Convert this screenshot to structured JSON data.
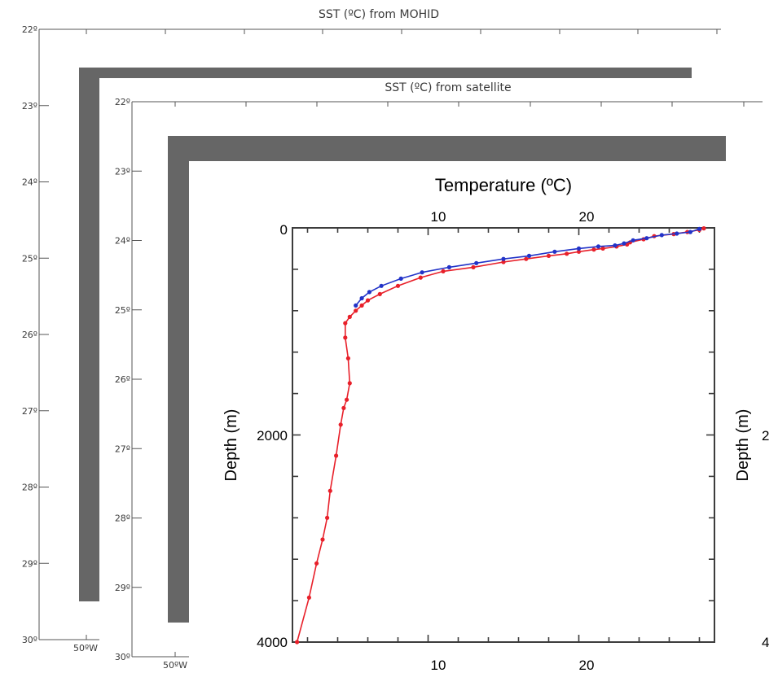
{
  "panels": [
    {
      "title": "SST (ºC) from MOHID",
      "lat_ticks": [
        "22º",
        "23º",
        "24º",
        "25º",
        "26º",
        "27º",
        "28º",
        "29º",
        "30º"
      ],
      "lon_ticks": [
        "50ºW"
      ]
    },
    {
      "title": "SST (ºC) from satellite",
      "lat_ticks": [
        "22º",
        "23º",
        "24º",
        "25º",
        "26º",
        "27º",
        "28º",
        "29º",
        "30º"
      ],
      "lon_ticks": [
        "50ºW"
      ]
    }
  ],
  "chart_data": {
    "type": "line",
    "title": "",
    "xlabel": "Temperature (ºC)",
    "ylabel": "Depth (m)",
    "x_ticks": [
      "10",
      "20"
    ],
    "y_ticks": [
      "0",
      "2000",
      "4000"
    ],
    "xlim": [
      1,
      29
    ],
    "ylim": [
      4000,
      0
    ],
    "right_axis_label": "Depth (m)",
    "right_partial_ticks": [
      "2",
      "4"
    ],
    "colors": {
      "series_1": "#e8202a",
      "series_2": "#2233c8"
    },
    "series": [
      {
        "x": [
          28.3,
          28.0,
          27.2,
          26.3,
          25.0,
          24.3,
          23.4,
          23.2,
          22.5,
          21.6,
          21.0,
          20.0,
          19.2,
          18.0,
          16.5,
          15.0,
          13.0,
          11.0,
          9.5,
          8.0,
          6.8,
          6.0,
          5.6,
          5.2,
          4.8,
          4.5,
          4.5,
          4.7,
          4.8,
          4.6,
          4.4,
          4.2,
          3.9,
          3.5,
          3.3,
          3.0,
          2.6,
          2.1,
          1.3
        ],
        "y": [
          5,
          20,
          40,
          60,
          80,
          110,
          140,
          160,
          180,
          200,
          210,
          230,
          250,
          270,
          300,
          330,
          380,
          420,
          480,
          560,
          640,
          700,
          750,
          800,
          860,
          920,
          1060,
          1260,
          1500,
          1660,
          1740,
          1900,
          2200,
          2540,
          2800,
          3010,
          3240,
          3570,
          4000
        ]
      },
      {
        "x": [
          28.0,
          27.4,
          26.5,
          25.5,
          24.5,
          23.6,
          23.0,
          22.4,
          21.3,
          20.0,
          18.4,
          16.7,
          15.0,
          13.2,
          11.4,
          9.6,
          8.2,
          6.9,
          6.1,
          5.6,
          5.2
        ],
        "y": [
          10,
          40,
          55,
          70,
          100,
          120,
          150,
          170,
          180,
          200,
          230,
          270,
          300,
          340,
          380,
          430,
          490,
          560,
          620,
          680,
          750
        ]
      }
    ]
  }
}
